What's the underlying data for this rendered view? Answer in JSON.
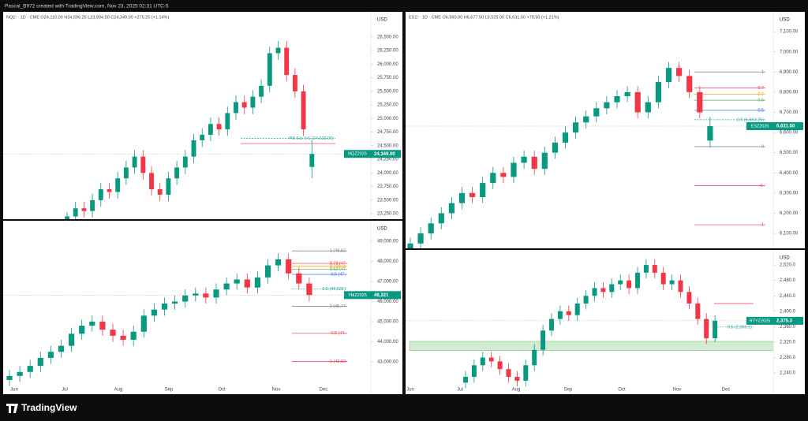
{
  "header": "Pascal_B972 created with TradingView.com, Nov 23, 2025 02:31 UTC-5",
  "footer": "TradingView",
  "chart_data": [
    {
      "type": "candlestick",
      "title": "NQ1! · 1D · CME  O24,110.00  H24,596.25  L23,904.50  C24,349.00  +275.25 (+1.14%)",
      "currency": "USD",
      "ylim": [
        23150,
        26960
      ],
      "yticks": [
        {
          "value": 23250,
          "label": "23,250.00"
        },
        {
          "value": 23500,
          "label": "23,500.00"
        },
        {
          "value": 23750,
          "label": "23,750.00"
        },
        {
          "value": 24000,
          "label": "24,000.00"
        },
        {
          "value": 24250,
          "label": "24,250.00"
        },
        {
          "value": 24500,
          "label": "24,500.00"
        },
        {
          "value": 24750,
          "label": "24,750.00"
        },
        {
          "value": 25000,
          "label": "25,000.00"
        },
        {
          "value": 25250,
          "label": "25,250.00"
        },
        {
          "value": 25500,
          "label": "25,500.00"
        },
        {
          "value": 25750,
          "label": "25,750.00"
        },
        {
          "value": 26000,
          "label": "26,000.00"
        },
        {
          "value": 26250,
          "label": "26,250.00"
        },
        {
          "value": 26500,
          "label": "26,500.00"
        }
      ],
      "last": {
        "contract": "NQZ2025",
        "value": 24349,
        "label": "24,349.00"
      },
      "levels": [
        {
          "value": 24633,
          "label": "PW Eq. 0.5 (24,633.00)",
          "color": "#26a69a"
        },
        {
          "value": 24540,
          "label": "",
          "color": "#f23645"
        }
      ],
      "candles": [
        [
          23100,
          23280,
          22980,
          23200
        ],
        [
          23200,
          23470,
          23080,
          23350
        ],
        [
          23350,
          23470,
          23180,
          23300
        ],
        [
          23300,
          23620,
          23180,
          23500
        ],
        [
          23500,
          23820,
          23380,
          23700
        ],
        [
          23700,
          23820,
          23530,
          23650
        ],
        [
          23650,
          24020,
          23530,
          23900
        ],
        [
          23900,
          24220,
          23780,
          24100
        ],
        [
          24100,
          24420,
          23980,
          24300
        ],
        [
          24300,
          24420,
          23880,
          24000
        ],
        [
          24000,
          24120,
          23580,
          23700
        ],
        [
          23700,
          23820,
          23480,
          23600
        ],
        [
          23600,
          24020,
          23480,
          23900
        ],
        [
          23900,
          24220,
          23780,
          24100
        ],
        [
          24100,
          24420,
          23980,
          24300
        ],
        [
          24300,
          24720,
          24180,
          24600
        ],
        [
          24600,
          24820,
          24480,
          24700
        ],
        [
          24700,
          25020,
          24580,
          24900
        ],
        [
          24900,
          25020,
          24680,
          24800
        ],
        [
          24800,
          25220,
          24680,
          25100
        ],
        [
          25100,
          25420,
          24980,
          25300
        ],
        [
          25300,
          25420,
          25080,
          25200
        ],
        [
          25200,
          25520,
          25080,
          25400
        ],
        [
          25400,
          25720,
          25280,
          25600
        ],
        [
          25600,
          26320,
          25480,
          26200
        ],
        [
          26200,
          26420,
          26080,
          26300
        ],
        [
          26300,
          26420,
          25680,
          25800
        ],
        [
          25800,
          25920,
          25380,
          25500
        ],
        [
          25500,
          25620,
          24680,
          24800
        ],
        [
          24110,
          24596.25,
          23904.5,
          24349
        ]
      ]
    },
    {
      "type": "candlestick",
      "title": "ES1! · 1D · CME  O6,560.00  H6,677.50  L6,525.00  C6,631.50  +79.50 (+1.21%)",
      "currency": "USD",
      "ylim": [
        6026,
        7198
      ],
      "yticks": [
        {
          "value": 6100,
          "label": "6,100.00"
        },
        {
          "value": 6200,
          "label": "6,200.00"
        },
        {
          "value": 6300,
          "label": "6,300.00"
        },
        {
          "value": 6400,
          "label": "6,400.00"
        },
        {
          "value": 6500,
          "label": "6,500.00"
        },
        {
          "value": 6600,
          "label": "6,600.00"
        },
        {
          "value": 6700,
          "label": "6,700.00"
        },
        {
          "value": 6800,
          "label": "6,800.00"
        },
        {
          "value": 6900,
          "label": "6,900.00"
        },
        {
          "value": 7000,
          "label": "7,000.00"
        },
        {
          "value": 7100,
          "label": "7,100.00"
        }
      ],
      "last": {
        "contract": "ESZ2025",
        "value": 6631.5,
        "label": "6,631.50"
      },
      "levels": [
        {
          "value": 6900,
          "label": "1",
          "color": "#787b86"
        },
        {
          "value": 6820,
          "label": "0.7",
          "color": "#f23645"
        },
        {
          "value": 6790,
          "label": "0.7",
          "color": "#ff9800"
        },
        {
          "value": 6760,
          "label": "0.6",
          "color": "#4caf50"
        },
        {
          "value": 6710,
          "label": "0.5",
          "color": "#2962ff"
        },
        {
          "value": 6663.25,
          "label": "0.5 (6,663.25)",
          "color": "#26a69a"
        },
        {
          "value": 6530,
          "label": "0",
          "color": "#787b86"
        },
        {
          "value": 6337,
          "label": "-0.",
          "color": "#f23645"
        },
        {
          "value": 6143,
          "label": "-1",
          "color": "#f23645"
        }
      ],
      "candles": [
        [
          6020,
          6080,
          5990,
          6050
        ],
        [
          6050,
          6130,
          6020,
          6100
        ],
        [
          6100,
          6180,
          6070,
          6150
        ],
        [
          6150,
          6230,
          6120,
          6200
        ],
        [
          6200,
          6280,
          6170,
          6250
        ],
        [
          6250,
          6330,
          6220,
          6300
        ],
        [
          6300,
          6330,
          6250,
          6280
        ],
        [
          6280,
          6380,
          6250,
          6350
        ],
        [
          6350,
          6430,
          6320,
          6400
        ],
        [
          6400,
          6430,
          6350,
          6380
        ],
        [
          6380,
          6480,
          6350,
          6450
        ],
        [
          6450,
          6510,
          6420,
          6480
        ],
        [
          6480,
          6510,
          6390,
          6420
        ],
        [
          6420,
          6530,
          6390,
          6500
        ],
        [
          6500,
          6580,
          6470,
          6550
        ],
        [
          6550,
          6630,
          6520,
          6600
        ],
        [
          6600,
          6680,
          6570,
          6650
        ],
        [
          6650,
          6710,
          6620,
          6680
        ],
        [
          6680,
          6750,
          6650,
          6720
        ],
        [
          6720,
          6780,
          6690,
          6750
        ],
        [
          6750,
          6810,
          6720,
          6780
        ],
        [
          6780,
          6830,
          6750,
          6800
        ],
        [
          6800,
          6830,
          6670,
          6700
        ],
        [
          6700,
          6780,
          6670,
          6750
        ],
        [
          6750,
          6880,
          6720,
          6850
        ],
        [
          6850,
          6950,
          6820,
          6920
        ],
        [
          6920,
          6950,
          6850,
          6880
        ],
        [
          6880,
          6910,
          6770,
          6800
        ],
        [
          6800,
          6830,
          6670,
          6700
        ],
        [
          6560,
          6677.5,
          6525,
          6631.5
        ]
      ]
    },
    {
      "type": "candlestick",
      "title": "",
      "currency": "USD",
      "ylim": [
        41392,
        50020
      ],
      "yticks": [
        {
          "value": 43000,
          "label": "43,000.00"
        },
        {
          "value": 44000,
          "label": "44,000.00"
        },
        {
          "value": 45000,
          "label": "45,000.00"
        },
        {
          "value": 46000,
          "label": "46,000.00"
        },
        {
          "value": 47000,
          "label": "47,000.00"
        },
        {
          "value": 48000,
          "label": "48,000.00"
        },
        {
          "value": 49000,
          "label": "49,000.00"
        }
      ],
      "months": [
        "Jun",
        "Jul",
        "Aug",
        "Sep",
        "Oct",
        "Nov",
        "Dec"
      ],
      "last": {
        "contract": "YMZ2025",
        "value": 46321,
        "label": "46,321"
      },
      "levels": [
        {
          "value": 48520,
          "label": "1 (48,52",
          "color": "#787b86"
        },
        {
          "value": 47900,
          "label": "0.79 (47",
          "color": "#f23645"
        },
        {
          "value": 47750,
          "label": "0.709 (4",
          "color": "#ff9800"
        },
        {
          "value": 47600,
          "label": "0.62 (47",
          "color": "#4caf50"
        },
        {
          "value": 47350,
          "label": "0.5 (47,",
          "color": "#2962ff"
        },
        {
          "value": 46631,
          "label": "0.5 (46,631)",
          "color": "#26a69a"
        },
        {
          "value": 45770,
          "label": "0 (45,77",
          "color": "#787b86"
        },
        {
          "value": 44420,
          "label": "-0.5 (44,",
          "color": "#f23645"
        },
        {
          "value": 43020,
          "label": "-1 (43,02",
          "color": "#f23645"
        }
      ],
      "candles": [
        [
          42100,
          42600,
          41800,
          42300
        ],
        [
          42300,
          42800,
          42000,
          42500
        ],
        [
          42500,
          43100,
          42200,
          42800
        ],
        [
          42800,
          43500,
          42500,
          43200
        ],
        [
          43200,
          43800,
          42900,
          43500
        ],
        [
          43500,
          44100,
          43200,
          43800
        ],
        [
          43800,
          44700,
          43500,
          44400
        ],
        [
          44400,
          45100,
          44100,
          44800
        ],
        [
          44800,
          45300,
          44500,
          45000
        ],
        [
          45000,
          45300,
          44300,
          44600
        ],
        [
          44600,
          44900,
          44000,
          44300
        ],
        [
          44300,
          44600,
          43800,
          44100
        ],
        [
          44100,
          44800,
          43800,
          44500
        ],
        [
          44500,
          45600,
          44200,
          45300
        ],
        [
          45300,
          45900,
          45000,
          45600
        ],
        [
          45600,
          46200,
          45300,
          45900
        ],
        [
          45900,
          46300,
          45600,
          46000
        ],
        [
          46000,
          46600,
          45700,
          46300
        ],
        [
          46300,
          46700,
          46000,
          46400
        ],
        [
          46400,
          46700,
          45900,
          46200
        ],
        [
          46200,
          46900,
          45900,
          46600
        ],
        [
          46600,
          47200,
          46300,
          46900
        ],
        [
          46900,
          47400,
          46600,
          47100
        ],
        [
          47100,
          47400,
          46400,
          46700
        ],
        [
          46700,
          47500,
          46400,
          47200
        ],
        [
          47200,
          48100,
          46900,
          47800
        ],
        [
          47800,
          48400,
          47500,
          48100
        ],
        [
          48100,
          48400,
          47100,
          47400
        ],
        [
          47400,
          47700,
          46600,
          46900
        ],
        [
          46900,
          47200,
          46000,
          46321
        ]
      ]
    },
    {
      "type": "candlestick",
      "title": "",
      "currency": "USD",
      "ylim": [
        2185,
        2559
      ],
      "yticks": [
        {
          "value": 2240,
          "label": "2,240.0"
        },
        {
          "value": 2280,
          "label": "2,280.0"
        },
        {
          "value": 2320,
          "label": "2,320.0"
        },
        {
          "value": 2360,
          "label": "2,360.0"
        },
        {
          "value": 2400,
          "label": "2,400.0"
        },
        {
          "value": 2440,
          "label": "2,440.0"
        },
        {
          "value": 2480,
          "label": "2,480.0"
        },
        {
          "value": 2520,
          "label": "2,520.0"
        }
      ],
      "months": [
        "Jun",
        "Jul",
        "Aug",
        "Sep",
        "Oct",
        "Nov",
        "Dec"
      ],
      "last": {
        "contract": "RTYZ2025",
        "value": 2375.3,
        "label": "2,375.3"
      },
      "zone": [
        2298,
        2322
      ],
      "levels": [
        {
          "value": 2420,
          "label": "",
          "color": "#f23645"
        },
        {
          "value": 2359.1,
          "label": "0.5 (2,359.1)",
          "color": "#26a69a"
        }
      ],
      "candles": [
        [
          2215,
          2245,
          2200,
          2230
        ],
        [
          2230,
          2275,
          2215,
          2260
        ],
        [
          2260,
          2295,
          2245,
          2280
        ],
        [
          2280,
          2295,
          2255,
          2270
        ],
        [
          2270,
          2285,
          2235,
          2250
        ],
        [
          2250,
          2265,
          2215,
          2230
        ],
        [
          2230,
          2245,
          2205,
          2220
        ],
        [
          2220,
          2275,
          2205,
          2260
        ],
        [
          2260,
          2315,
          2245,
          2300
        ],
        [
          2300,
          2365,
          2285,
          2350
        ],
        [
          2350,
          2395,
          2335,
          2380
        ],
        [
          2380,
          2415,
          2365,
          2400
        ],
        [
          2400,
          2415,
          2375,
          2390
        ],
        [
          2390,
          2435,
          2375,
          2420
        ],
        [
          2420,
          2455,
          2405,
          2440
        ],
        [
          2440,
          2475,
          2425,
          2460
        ],
        [
          2460,
          2475,
          2435,
          2450
        ],
        [
          2450,
          2485,
          2435,
          2470
        ],
        [
          2470,
          2495,
          2455,
          2480
        ],
        [
          2480,
          2495,
          2445,
          2460
        ],
        [
          2460,
          2515,
          2445,
          2500
        ],
        [
          2500,
          2535,
          2485,
          2520
        ],
        [
          2520,
          2535,
          2485,
          2500
        ],
        [
          2500,
          2515,
          2455,
          2470
        ],
        [
          2470,
          2495,
          2455,
          2480
        ],
        [
          2480,
          2495,
          2435,
          2450
        ],
        [
          2450,
          2465,
          2405,
          2420
        ],
        [
          2420,
          2435,
          2365,
          2380
        ],
        [
          2380,
          2395,
          2315,
          2330
        ],
        [
          2330,
          2390,
          2320,
          2375.3
        ]
      ]
    }
  ]
}
